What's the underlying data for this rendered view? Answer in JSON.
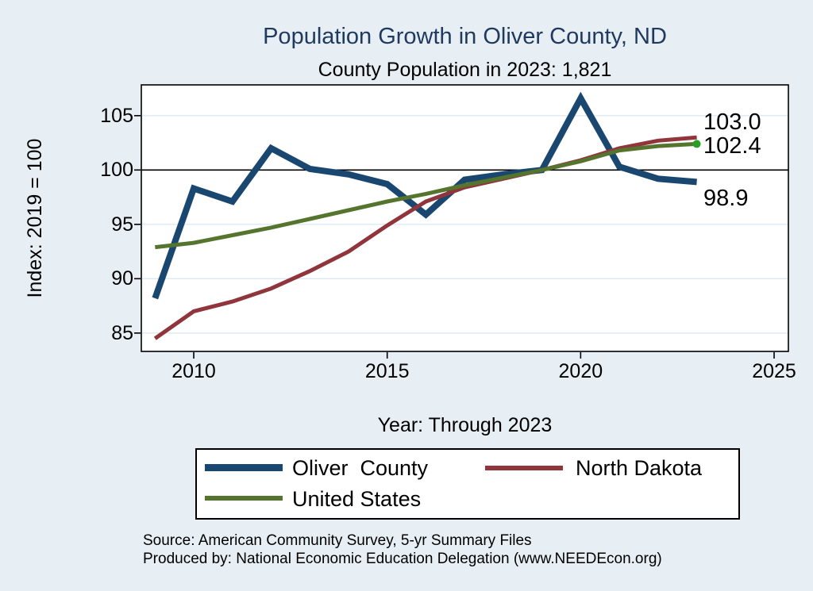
{
  "title": "Population Growth in Oliver County, ND",
  "subtitle": "County Population in 2023: 1,821",
  "colors": {
    "page_background": "#e8eff4",
    "plot_background": "#ffffff",
    "gridline": "#dde9f2",
    "axis": "#000000",
    "title_text": "#203a5f",
    "oliver_county": "#1a476f",
    "north_dakota": "#90353b",
    "united_states": "#55752f",
    "us_end_marker": "#28a028"
  },
  "chart_data": {
    "type": "line",
    "x": [
      2009,
      2010,
      2011,
      2012,
      2013,
      2014,
      2015,
      2016,
      2017,
      2018,
      2019,
      2020,
      2021,
      2022,
      2023
    ],
    "series": [
      {
        "name": "Oliver  County",
        "color": "#1a476f",
        "line_width": 8,
        "values": [
          88.2,
          98.3,
          97.1,
          102.0,
          100.1,
          99.6,
          98.7,
          95.9,
          99.1,
          99.6,
          100.0,
          106.6,
          100.3,
          99.2,
          98.9
        ],
        "end_label": "98.9"
      },
      {
        "name": "North Dakota",
        "color": "#90353b",
        "line_width": 5,
        "values": [
          84.5,
          87.0,
          87.9,
          89.1,
          90.7,
          92.5,
          94.9,
          97.1,
          98.4,
          99.2,
          100.0,
          100.9,
          102.0,
          102.7,
          103.0
        ],
        "end_label": "103.0"
      },
      {
        "name": "United States",
        "color": "#55752f",
        "line_width": 5,
        "values": [
          92.9,
          93.3,
          94.0,
          94.7,
          95.5,
          96.3,
          97.1,
          97.8,
          98.6,
          99.3,
          100.0,
          100.8,
          101.8,
          102.2,
          102.4
        ],
        "end_label": "102.4",
        "end_marker_color": "#28a028"
      }
    ],
    "title": "Population Growth in Oliver County, ND",
    "subtitle": "County Population in 2023: 1,821",
    "xlabel": "Year: Through 2023",
    "ylabel": "Index: 2019 = 100",
    "x_ticks": [
      2010,
      2015,
      2020,
      2025
    ],
    "y_ticks": [
      85,
      90,
      95,
      100,
      105
    ],
    "xlim": [
      2008.645,
      2025.369
    ],
    "ylim": [
      83.31,
      107.83
    ],
    "reference_line_y": 100,
    "grid": true,
    "legend_position": "bottom"
  },
  "source_line1": "Source: American Community Survey, 5-yr Summary Files",
  "source_line2": "Produced by: National Economic Education Delegation (www.NEEDEcon.org)"
}
